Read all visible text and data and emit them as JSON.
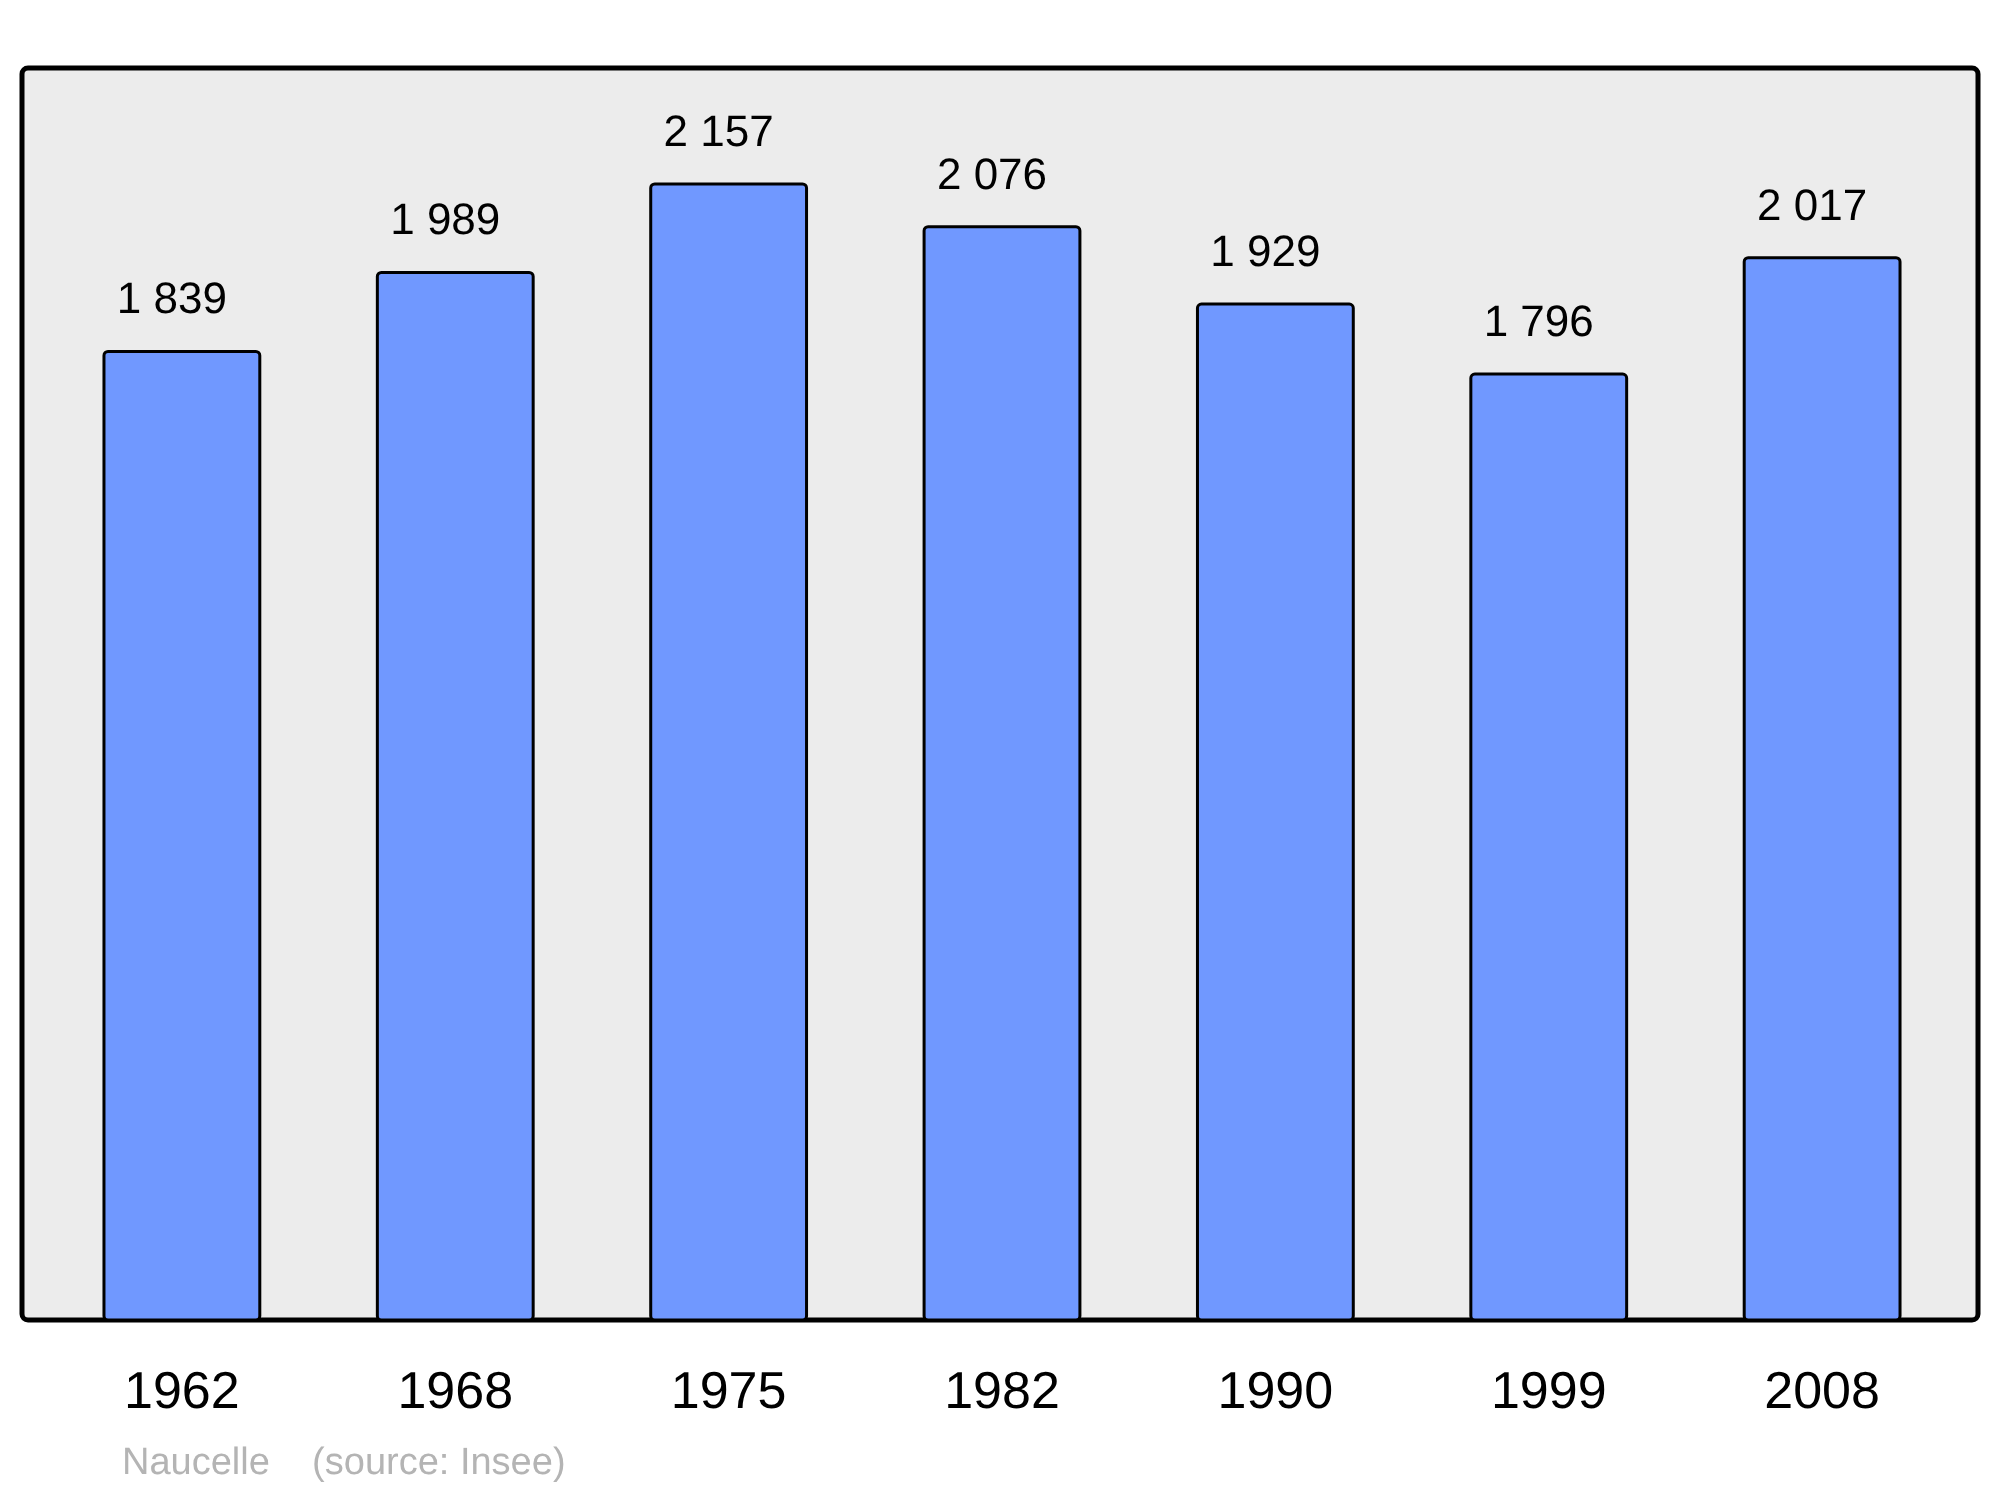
{
  "chart_data": {
    "type": "bar",
    "categories": [
      "1962",
      "1968",
      "1975",
      "1982",
      "1990",
      "1999",
      "2008"
    ],
    "values": [
      1839,
      1989,
      2157,
      2076,
      1929,
      1796,
      2017
    ],
    "value_labels": [
      "1 839",
      "1 989",
      "2 157",
      "2 076",
      "1 929",
      "1 796",
      "2 017"
    ],
    "color": "#7098ff",
    "tick_labels": "x",
    "annotations": [
      "Naucelle    (source: Insee)"
    ]
  }
}
